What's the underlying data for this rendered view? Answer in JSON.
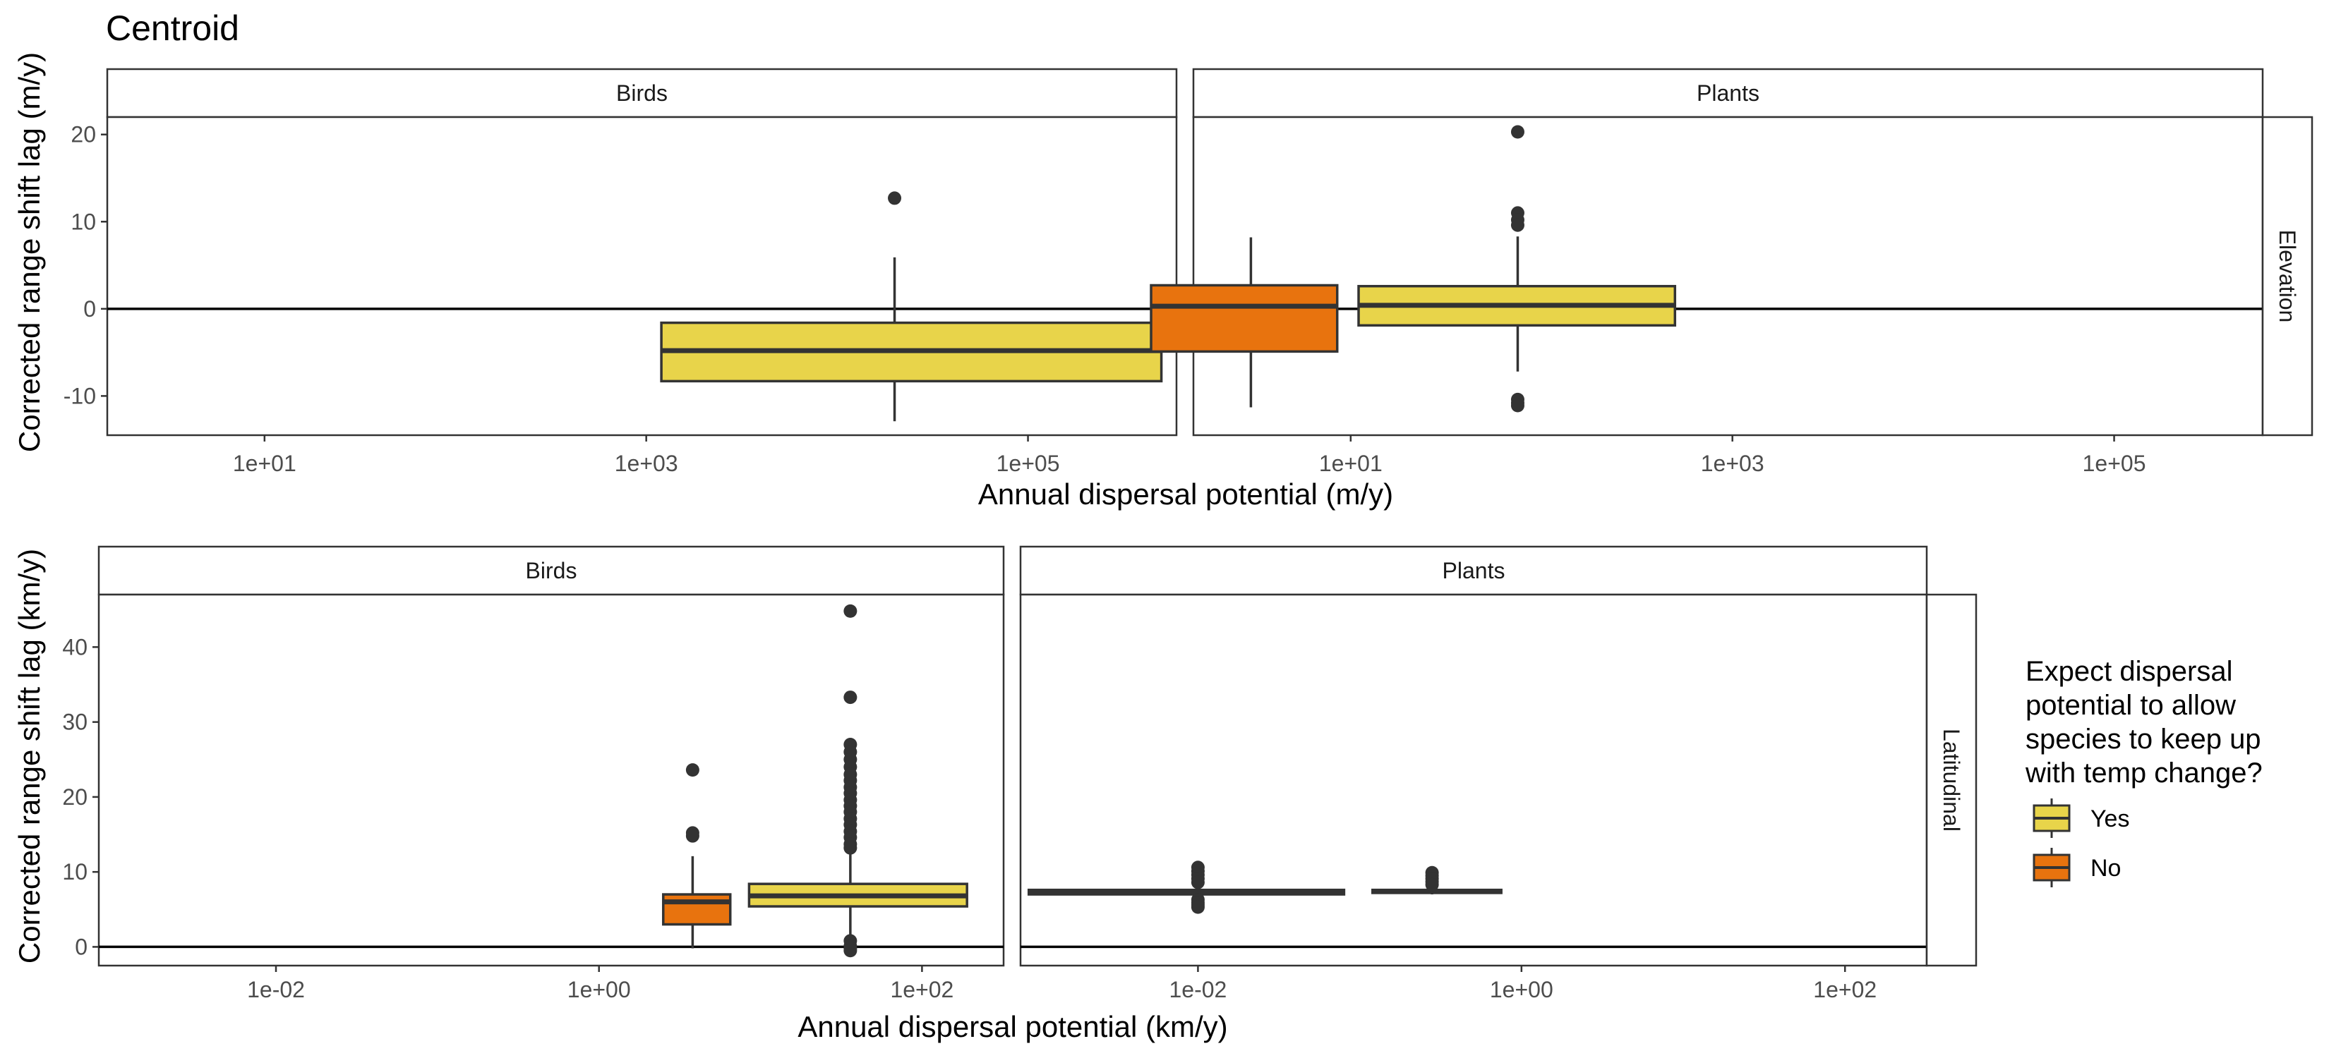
{
  "figure_title": "Centroid",
  "colors": {
    "yes": "#E8D44A",
    "no": "#E8730E",
    "outline": "#333333",
    "text": "#4d4d4d"
  },
  "legend": {
    "title_lines": [
      "Expect dispersal",
      "potential to allow",
      "species to keep up",
      "with temp change?"
    ],
    "items": [
      {
        "label": "Yes",
        "color": "#E8D44A"
      },
      {
        "label": "No",
        "color": "#E8730E"
      }
    ]
  },
  "chart_data": [
    {
      "type": "box",
      "row_strip": "Elevation",
      "xlabel": "Annual dispersal potential (m/y)",
      "ylabel": "Corrected range shift lag (m/y)",
      "x_scale": "log10",
      "xlim": [
        1.5,
        600000
      ],
      "ylim": [
        -14.5,
        22
      ],
      "xticks": [
        "1e+01",
        "1e+03",
        "1e+05"
      ],
      "xtick_values": [
        10,
        1000,
        100000
      ],
      "yticks": [
        "-10",
        "0",
        "10",
        "20"
      ],
      "ytick_values": [
        -10,
        0,
        10,
        20
      ],
      "reference_line_y": 0,
      "panels": [
        {
          "facet": "Birds",
          "boxes": [
            {
              "group": "Yes",
              "xmin": 1200,
              "xmax": 500000,
              "x_center": 20000,
              "q1": -8.3,
              "median": -4.8,
              "q3": -1.6,
              "whisker_low": -12.9,
              "whisker_high": 5.9,
              "outliers": [
                12.7
              ]
            }
          ]
        },
        {
          "facet": "Plants",
          "boxes": [
            {
              "group": "No",
              "xmin": 0.9,
              "xmax": 8.5,
              "x_center": 3,
              "q1": -4.9,
              "median": 0.3,
              "q3": 2.7,
              "whisker_low": -11.3,
              "whisker_high": 8.2,
              "outliers": []
            },
            {
              "group": "Yes",
              "xmin": 11,
              "xmax": 500,
              "x_center": 75,
              "q1": -1.9,
              "median": 0.4,
              "q3": 2.6,
              "whisker_low": -7.2,
              "whisker_high": 8.3,
              "outliers": [
                20.3,
                11.0,
                10.2,
                9.6,
                -10.4,
                -10.8,
                -11.1
              ]
            }
          ]
        }
      ]
    },
    {
      "type": "box",
      "row_strip": "Latitudinal",
      "xlabel": "Annual dispersal potential (km/y)",
      "ylabel": "Corrected range shift lag (km/y)",
      "x_scale": "log10",
      "xlim": [
        0.0008,
        320
      ],
      "ylim": [
        -2.5,
        47
      ],
      "xticks": [
        "1e-02",
        "1e+00",
        "1e+02"
      ],
      "xtick_values": [
        0.01,
        1,
        100
      ],
      "yticks": [
        "0",
        "10",
        "20",
        "30",
        "40"
      ],
      "ytick_values": [
        0,
        10,
        20,
        30,
        40
      ],
      "reference_line_y": 0,
      "panels": [
        {
          "facet": "Birds",
          "boxes": [
            {
              "group": "No",
              "xmin": 2.5,
              "xmax": 6.5,
              "x_center": 3.8,
              "q1": 3.0,
              "median": 6.0,
              "q3": 7.0,
              "whisker_low": -0.2,
              "whisker_high": 12.1,
              "outliers": [
                23.6,
                15.2,
                14.8
              ]
            },
            {
              "group": "Yes",
              "xmin": 8.5,
              "xmax": 190,
              "x_center": 36,
              "q1": 5.4,
              "median": 6.8,
              "q3": 8.4,
              "whisker_low": 1.4,
              "whisker_high": 12.8,
              "outliers": [
                44.8,
                33.3,
                27.0,
                26.0,
                25.0,
                24.0,
                23.0,
                22.2,
                21.3,
                20.5,
                19.6,
                18.8,
                18.0,
                17.1,
                16.3,
                15.4,
                14.6,
                13.7,
                13.2,
                0.8,
                0.1,
                -0.2,
                -0.5
              ]
            }
          ]
        },
        {
          "facet": "Plants",
          "boxes": [
            {
              "group": "Yes",
              "xmin": 0.0009,
              "xmax": 0.08,
              "x_center": 0.01,
              "q1": 7.0,
              "median": 7.3,
              "q3": 7.6,
              "whisker_low": 6.6,
              "whisker_high": 7.8,
              "outliers": [
                10.6,
                10.1,
                9.6,
                9.1,
                8.6,
                6.3,
                5.9,
                5.6,
                5.3
              ]
            },
            {
              "group": "Yes",
              "xmin": 0.12,
              "xmax": 0.75,
              "x_center": 0.28,
              "q1": 7.2,
              "median": 7.4,
              "q3": 7.6,
              "whisker_low": 7.0,
              "whisker_high": 7.8,
              "outliers": [
                9.9,
                9.5,
                9.1,
                8.7,
                8.3
              ]
            }
          ]
        }
      ]
    }
  ]
}
